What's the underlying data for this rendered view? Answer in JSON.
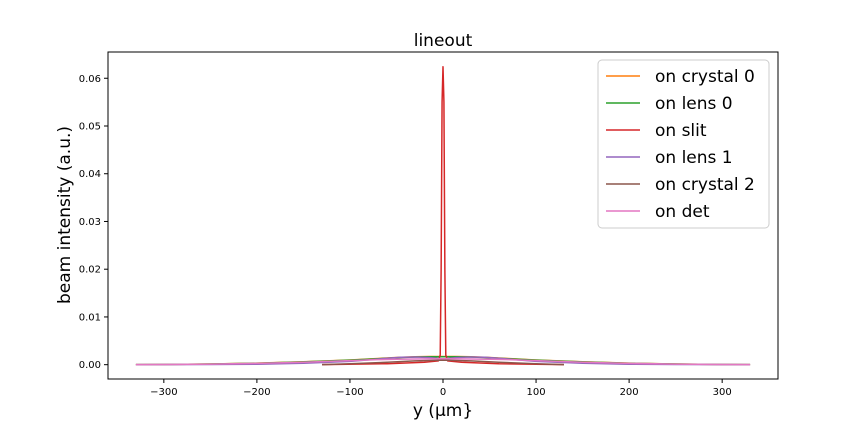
{
  "chart_data": {
    "type": "line",
    "title": "lineout",
    "xlabel": "y (μm}",
    "ylabel": "beam intensity (a.u.)",
    "xlim": [
      -360,
      360
    ],
    "ylim": [
      -0.003,
      0.0655
    ],
    "xticks": [
      -300,
      -200,
      -100,
      0,
      100,
      200,
      300
    ],
    "xtick_labels": [
      "−300",
      "−200",
      "−100",
      "0",
      "100",
      "200",
      "300"
    ],
    "yticks": [
      0.0,
      0.01,
      0.02,
      0.03,
      0.04,
      0.05,
      0.06
    ],
    "ytick_labels": [
      "0.00",
      "0.01",
      "0.02",
      "0.03",
      "0.04",
      "0.05",
      "0.06"
    ],
    "legend_position": "top-right",
    "series": [
      {
        "name": "on crystal 0",
        "color": "#ff7f0e",
        "x": [
          -330,
          -300,
          -250,
          -200,
          -150,
          -100,
          -70,
          -50,
          -30,
          -15,
          0,
          15,
          30,
          50,
          70,
          100,
          150,
          200,
          250,
          300,
          330
        ],
        "y": [
          0.0,
          5e-05,
          0.00014,
          0.00032,
          0.0006,
          0.00098,
          0.0013,
          0.0015,
          0.00165,
          0.0017,
          0.00172,
          0.0017,
          0.00165,
          0.0015,
          0.0013,
          0.00098,
          0.0006,
          0.00032,
          0.00014,
          5e-05,
          0.0
        ]
      },
      {
        "name": "on lens 0",
        "color": "#2ca02c",
        "x": [
          -330,
          -300,
          -250,
          -200,
          -150,
          -100,
          -70,
          -50,
          -30,
          -15,
          0,
          15,
          30,
          50,
          70,
          100,
          150,
          200,
          250,
          300,
          330
        ],
        "y": [
          0.0,
          5e-05,
          0.00013,
          0.0003,
          0.00058,
          0.00095,
          0.00125,
          0.00145,
          0.0016,
          0.00165,
          0.00167,
          0.00165,
          0.0016,
          0.00145,
          0.00125,
          0.00095,
          0.00058,
          0.0003,
          0.00013,
          5e-05,
          0.0
        ]
      },
      {
        "name": "on slit",
        "color": "#d62728",
        "x": [
          -130,
          -60,
          -20,
          -5,
          -3,
          -2,
          -1,
          0,
          1,
          2,
          3,
          5,
          20,
          60,
          130
        ],
        "y": [
          0.0,
          0.0002,
          0.0005,
          0.0008,
          0.002,
          0.02,
          0.055,
          0.0624,
          0.055,
          0.02,
          0.002,
          0.0008,
          0.0005,
          0.0002,
          0.0
        ]
      },
      {
        "name": "on lens 1",
        "color": "#9467bd",
        "x": [
          -330,
          -250,
          -200,
          -150,
          -100,
          -80,
          -60,
          -45,
          -30,
          -15,
          0,
          15,
          30,
          45,
          60,
          80,
          100,
          150,
          200,
          250,
          330
        ],
        "y": [
          0.0,
          3e-05,
          0.0001,
          0.0003,
          0.0007,
          0.001,
          0.00135,
          0.00155,
          0.00162,
          0.0015,
          0.0012,
          0.0015,
          0.00162,
          0.00155,
          0.00135,
          0.001,
          0.0007,
          0.0003,
          0.0001,
          3e-05,
          0.0
        ]
      },
      {
        "name": "on crystal 2",
        "color": "#8c564b",
        "x": [
          -130,
          -100,
          -60,
          -30,
          -10,
          0,
          10,
          30,
          60,
          100,
          130
        ],
        "y": [
          0.0,
          0.0002,
          0.0005,
          0.0008,
          0.0009,
          0.00095,
          0.0009,
          0.0008,
          0.0005,
          0.0002,
          0.0
        ]
      },
      {
        "name": "on det",
        "color": "#e377c2",
        "x": [
          -330,
          -300,
          -250,
          -200,
          -150,
          -100,
          -70,
          -50,
          -30,
          -15,
          0,
          15,
          30,
          50,
          70,
          100,
          150,
          200,
          250,
          300,
          330
        ],
        "y": [
          0.0,
          4e-05,
          0.00012,
          0.00028,
          0.00052,
          0.00085,
          0.00105,
          0.00115,
          0.0012,
          0.00122,
          0.00123,
          0.00122,
          0.0012,
          0.00115,
          0.00105,
          0.00085,
          0.00052,
          0.00028,
          0.00012,
          4e-05,
          0.0
        ]
      }
    ]
  }
}
